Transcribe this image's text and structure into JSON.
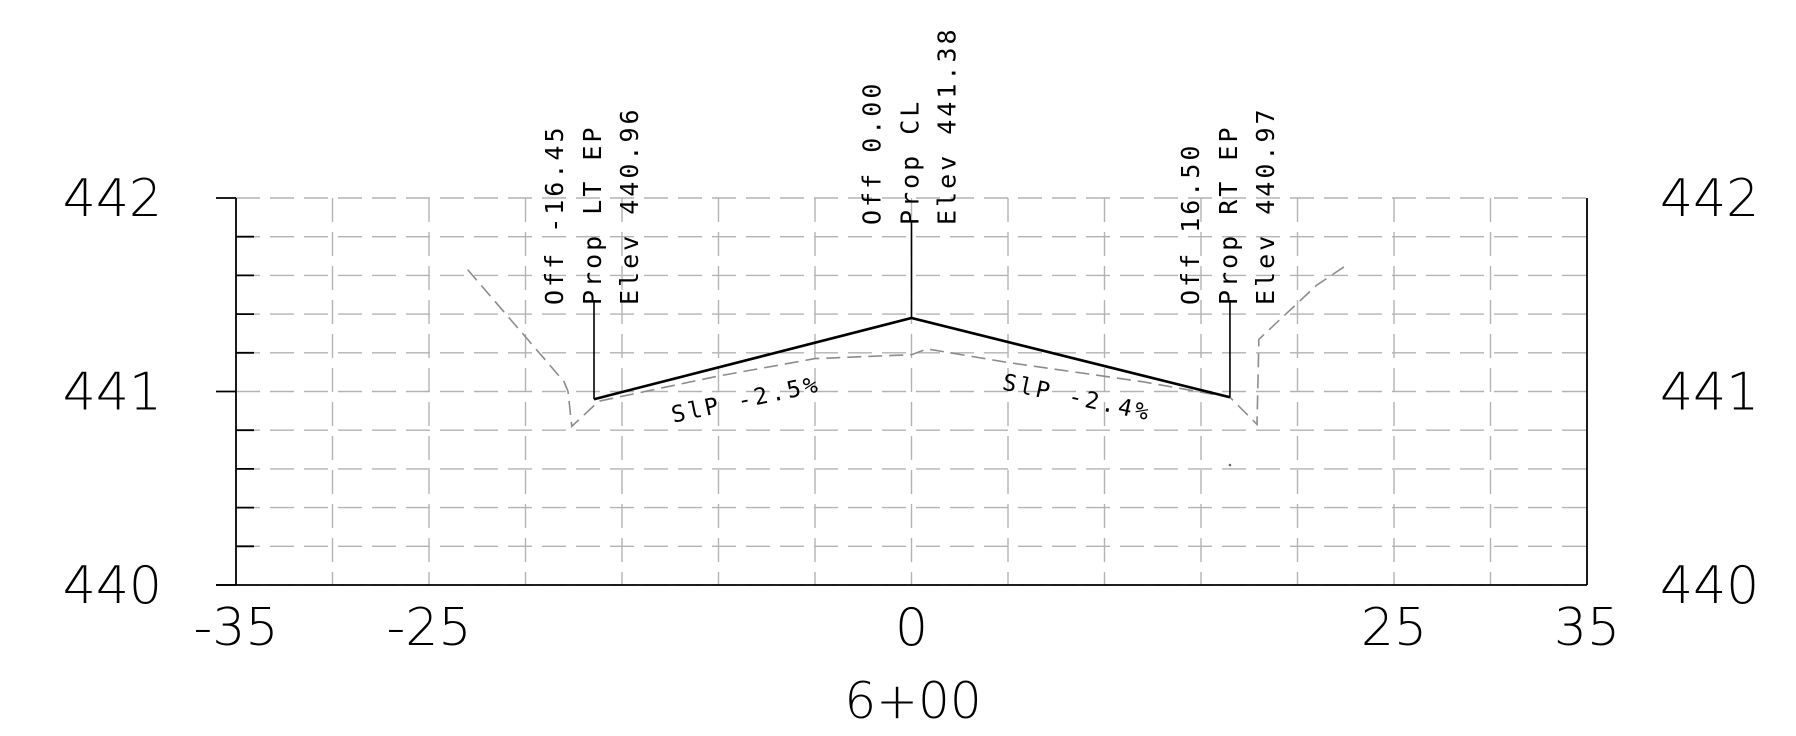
{
  "chart_data": {
    "type": "line",
    "station": "6+00",
    "x_ticks": [
      "-35",
      "-25",
      "0",
      "25",
      "35"
    ],
    "y_ticks": [
      "442",
      "441",
      "440"
    ],
    "xlim": [
      -35,
      35
    ],
    "ylim": [
      440,
      442
    ],
    "grid": true,
    "proposed_section": [
      {
        "x": -16.45,
        "y": 440.96
      },
      {
        "x": 0.0,
        "y": 441.38
      },
      {
        "x": 16.5,
        "y": 440.97
      }
    ],
    "existing_ground": [
      {
        "x": -23.0,
        "y": 441.63
      },
      {
        "x": -18.0,
        "y": 441.05
      },
      {
        "x": -17.8,
        "y": 441.0
      },
      {
        "x": -17.6,
        "y": 440.82
      },
      {
        "x": -16.2,
        "y": 440.95
      },
      {
        "x": -10.0,
        "y": 441.08
      },
      {
        "x": -5.0,
        "y": 441.17
      },
      {
        "x": 0.0,
        "y": 441.19
      },
      {
        "x": 0.8,
        "y": 441.22
      },
      {
        "x": 5.0,
        "y": 441.15
      },
      {
        "x": 12.0,
        "y": 441.05
      },
      {
        "x": 16.5,
        "y": 440.97
      },
      {
        "x": 17.9,
        "y": 440.83
      },
      {
        "x": 18.0,
        "y": 441.27
      },
      {
        "x": 21.0,
        "y": 441.55
      },
      {
        "x": 22.5,
        "y": 441.65
      }
    ],
    "point_labels": [
      {
        "x": -16.45,
        "y": 440.96,
        "lines": [
          "Off -16.45",
          "Prop LT EP",
          "Elev 440.96"
        ]
      },
      {
        "x": 0.0,
        "y": 441.38,
        "lines": [
          "Off 0.00",
          "Prop CL",
          "Elev 441.38"
        ]
      },
      {
        "x": 16.5,
        "y": 440.97,
        "lines": [
          "Off 16.50",
          "Prop RT EP",
          "Elev 440.97"
        ]
      }
    ],
    "slope_labels": [
      {
        "text": "SlP -2.5%",
        "x": -8.5,
        "y": 440.92
      },
      {
        "text": "SlP -2.4%",
        "x": 8.5,
        "y": 440.93
      }
    ]
  }
}
